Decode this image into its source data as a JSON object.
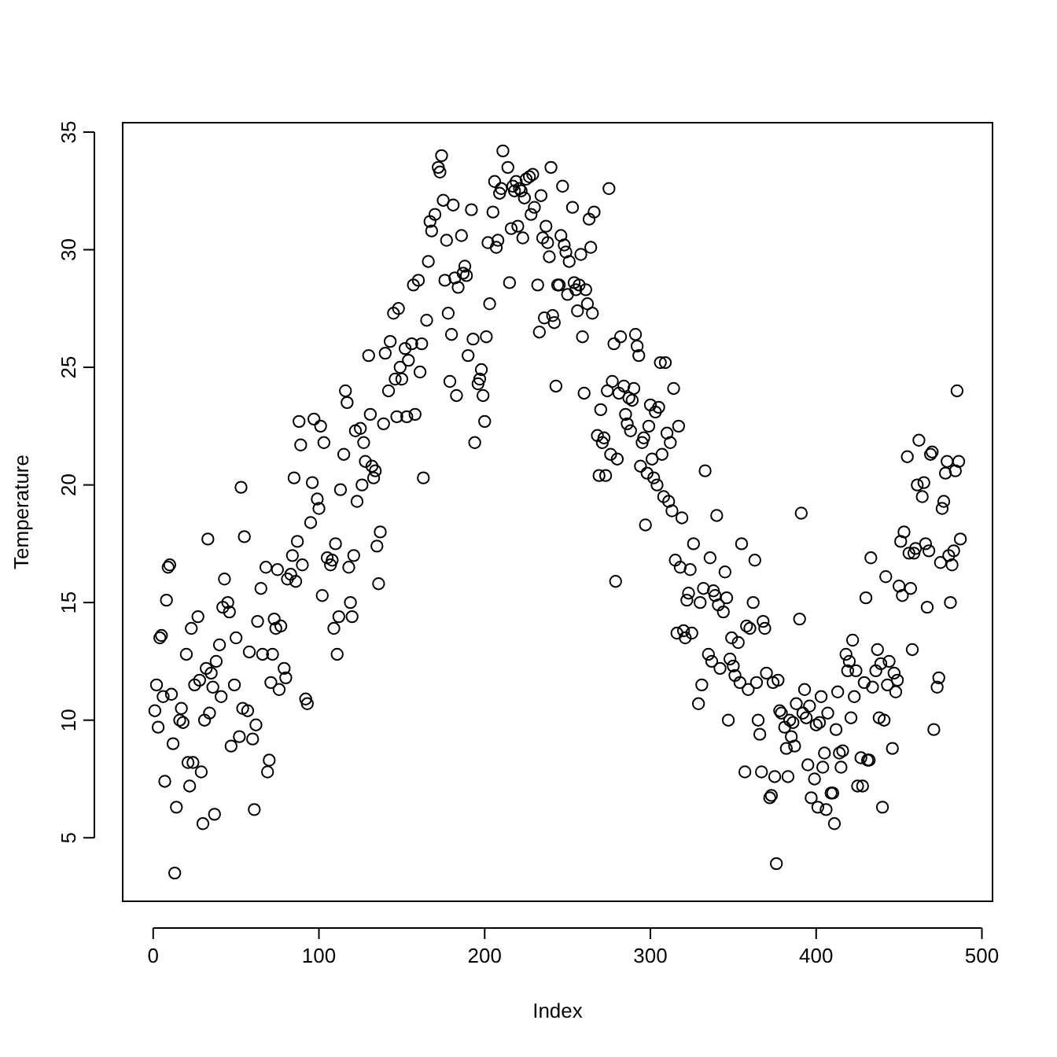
{
  "chart_data": {
    "type": "scatter",
    "xlabel": "Index",
    "ylabel": "Temperature",
    "color": "#000000",
    "marker": "circle",
    "xlim": [
      -18.4,
      506.4
    ],
    "ylim": [
      2.3,
      35.4
    ],
    "xticks": [
      0,
      100,
      200,
      300,
      400,
      500
    ],
    "yticks": [
      5,
      10,
      15,
      20,
      25,
      30,
      35
    ],
    "x": [
      1,
      2,
      3,
      4,
      5,
      6,
      7,
      8,
      9,
      10,
      11,
      12,
      13,
      14,
      16,
      17,
      18,
      20,
      21,
      22,
      23,
      24,
      25,
      27,
      28,
      29,
      30,
      31,
      32,
      33,
      34,
      35,
      36,
      37,
      38,
      40,
      41,
      42,
      43,
      45,
      46,
      47,
      49,
      50,
      52,
      53,
      54,
      55,
      57,
      58,
      60,
      61,
      62,
      63,
      65,
      66,
      68,
      69,
      70,
      71,
      72,
      73,
      74,
      75,
      76,
      77,
      79,
      80,
      81,
      83,
      84,
      85,
      86,
      87,
      88,
      89,
      90,
      92,
      93,
      95,
      96,
      97,
      99,
      100,
      101,
      102,
      103,
      105,
      107,
      108,
      109,
      110,
      111,
      112,
      113,
      115,
      116,
      117,
      118,
      119,
      120,
      121,
      122,
      123,
      125,
      126,
      127,
      128,
      130,
      131,
      132,
      133,
      134,
      135,
      136,
      137,
      139,
      140,
      142,
      143,
      145,
      146,
      147,
      148,
      149,
      150,
      152,
      153,
      154,
      156,
      157,
      158,
      160,
      161,
      162,
      163,
      165,
      166,
      167,
      168,
      170,
      172,
      173,
      174,
      175,
      176,
      177,
      178,
      179,
      180,
      181,
      182,
      183,
      184,
      186,
      187,
      188,
      189,
      190,
      192,
      193,
      194,
      196,
      197,
      198,
      199,
      200,
      201,
      202,
      203,
      205,
      206,
      207,
      208,
      209,
      210,
      211,
      214,
      215,
      216,
      217,
      218,
      219,
      220,
      221,
      222,
      223,
      224,
      225,
      227,
      228,
      229,
      230,
      232,
      233,
      234,
      235,
      236,
      237,
      238,
      239,
      240,
      241,
      242,
      243,
      244,
      245,
      246,
      247,
      248,
      249,
      250,
      251,
      253,
      254,
      255,
      256,
      257,
      258,
      259,
      260,
      261,
      262,
      263,
      264,
      265,
      266,
      268,
      269,
      270,
      271,
      272,
      273,
      274,
      275,
      276,
      277,
      278,
      279,
      280,
      281,
      282,
      284,
      285,
      286,
      287,
      288,
      289,
      290,
      291,
      292,
      293,
      294,
      295,
      296,
      297,
      298,
      299,
      300,
      301,
      302,
      303,
      304,
      305,
      306,
      307,
      308,
      309,
      310,
      311,
      312,
      313,
      314,
      315,
      316,
      317,
      318,
      319,
      320,
      321,
      322,
      323,
      324,
      325,
      326,
      329,
      330,
      331,
      332,
      333,
      335,
      336,
      337,
      338,
      339,
      340,
      341,
      342,
      344,
      345,
      346,
      347,
      348,
      349,
      350,
      351,
      353,
      354,
      355,
      357,
      358,
      359,
      360,
      362,
      363,
      364,
      365,
      366,
      367,
      368,
      369,
      370,
      372,
      373,
      374,
      375,
      376,
      377,
      378,
      379,
      381,
      382,
      383,
      384,
      385,
      386,
      387,
      388,
      390,
      391,
      392,
      393,
      394,
      395,
      396,
      397,
      399,
      400,
      401,
      402,
      403,
      404,
      405,
      406,
      407,
      409,
      410,
      411,
      412,
      413,
      414,
      415,
      416,
      418,
      419,
      420,
      421,
      422,
      423,
      424,
      425,
      427,
      428,
      429,
      430,
      431,
      432,
      433,
      434,
      436,
      437,
      438,
      439,
      440,
      441,
      442,
      443,
      444,
      446,
      447,
      448,
      449,
      450,
      451,
      452,
      453,
      455,
      456,
      457,
      458,
      459,
      460,
      461,
      462,
      464,
      465,
      466,
      467,
      468,
      469,
      470,
      471,
      473,
      474,
      475,
      476,
      477,
      478,
      479,
      480,
      481,
      482,
      483,
      484,
      485,
      486,
      487
    ],
    "values": [
      10.4,
      11.5,
      9.7,
      13.5,
      13.6,
      11.0,
      7.4,
      15.1,
      16.5,
      16.6,
      11.1,
      9.0,
      3.5,
      6.3,
      10.0,
      10.5,
      9.9,
      12.8,
      8.2,
      7.2,
      13.9,
      8.2,
      11.5,
      14.4,
      11.7,
      7.8,
      5.6,
      10.0,
      12.2,
      17.7,
      10.3,
      12.0,
      11.4,
      6.0,
      12.5,
      13.2,
      11.0,
      14.8,
      16.0,
      15.0,
      14.6,
      8.9,
      11.5,
      13.5,
      9.3,
      19.9,
      10.5,
      17.8,
      10.4,
      12.9,
      9.2,
      6.2,
      9.8,
      14.2,
      15.6,
      12.8,
      16.5,
      7.8,
      8.3,
      11.6,
      12.8,
      14.3,
      13.9,
      16.4,
      11.3,
      14.0,
      12.2,
      11.8,
      16.0,
      16.2,
      17.0,
      20.3,
      15.9,
      17.6,
      22.7,
      21.7,
      16.6,
      10.9,
      10.7,
      18.4,
      20.1,
      22.8,
      19.4,
      19.0,
      22.5,
      15.3,
      21.8,
      16.9,
      16.6,
      16.8,
      13.9,
      17.5,
      12.8,
      14.4,
      19.8,
      21.3,
      24.0,
      23.5,
      16.5,
      15.0,
      14.4,
      17.0,
      22.3,
      19.3,
      22.4,
      20.0,
      21.8,
      21.0,
      25.5,
      23.0,
      20.8,
      20.3,
      20.6,
      17.4,
      15.8,
      18.0,
      22.6,
      25.6,
      24.0,
      26.1,
      27.3,
      24.5,
      22.9,
      27.5,
      25.0,
      24.5,
      25.8,
      22.9,
      25.3,
      26.0,
      28.5,
      23.0,
      28.7,
      24.8,
      26.0,
      20.3,
      27.0,
      29.5,
      31.2,
      30.8,
      31.5,
      33.5,
      33.3,
      34.0,
      32.1,
      28.7,
      30.4,
      27.3,
      24.4,
      26.4,
      31.9,
      28.8,
      23.8,
      28.4,
      30.6,
      29.0,
      29.3,
      28.9,
      25.5,
      31.7,
      26.2,
      21.8,
      24.3,
      24.5,
      24.9,
      23.8,
      22.7,
      26.3,
      30.3,
      27.7,
      31.6,
      32.9,
      30.1,
      30.4,
      32.4,
      32.6,
      34.2,
      33.5,
      28.6,
      30.9,
      32.7,
      32.5,
      32.9,
      31.0,
      32.6,
      32.5,
      30.5,
      32.2,
      33.0,
      33.1,
      31.5,
      33.2,
      31.8,
      28.5,
      26.5,
      32.3,
      30.5,
      27.1,
      31.0,
      30.3,
      29.7,
      33.5,
      27.2,
      26.9,
      24.2,
      28.5,
      28.5,
      30.6,
      32.7,
      30.2,
      29.9,
      28.1,
      29.5,
      31.8,
      28.6,
      28.3,
      27.4,
      28.5,
      29.8,
      26.3,
      23.9,
      28.3,
      27.7,
      31.3,
      30.1,
      27.3,
      31.6,
      22.1,
      20.4,
      23.2,
      21.8,
      22.0,
      20.4,
      24.0,
      32.6,
      21.3,
      24.4,
      26.0,
      15.9,
      21.1,
      23.9,
      26.3,
      24.2,
      23.0,
      22.6,
      23.7,
      22.3,
      23.6,
      24.1,
      26.4,
      25.9,
      25.5,
      20.8,
      21.8,
      22.0,
      18.3,
      20.5,
      22.5,
      23.4,
      21.1,
      20.3,
      23.1,
      20.0,
      23.3,
      25.2,
      21.3,
      19.5,
      25.2,
      22.2,
      19.3,
      21.8,
      18.9,
      24.1,
      16.8,
      13.7,
      22.5,
      16.5,
      18.6,
      13.8,
      13.5,
      15.1,
      15.4,
      16.4,
      13.7,
      17.5,
      10.7,
      15.0,
      11.5,
      15.6,
      20.6,
      12.8,
      16.9,
      12.5,
      15.5,
      15.3,
      18.7,
      14.9,
      12.2,
      14.6,
      16.3,
      15.2,
      10.0,
      12.6,
      13.5,
      12.3,
      11.9,
      13.3,
      11.6,
      17.5,
      7.8,
      14.0,
      11.3,
      13.9,
      15.0,
      16.8,
      11.6,
      10.0,
      9.4,
      7.8,
      14.2,
      13.9,
      12.0,
      6.7,
      6.8,
      11.6,
      7.6,
      3.9,
      11.7,
      10.4,
      10.3,
      9.7,
      8.8,
      7.6,
      10.0,
      9.3,
      9.9,
      8.9,
      10.7,
      14.3,
      18.8,
      10.3,
      11.3,
      10.1,
      8.1,
      10.6,
      6.7,
      7.5,
      9.8,
      6.3,
      9.9,
      11.0,
      8.0,
      8.6,
      6.2,
      10.3,
      6.9,
      6.9,
      5.6,
      9.6,
      11.2,
      8.6,
      8.0,
      8.7,
      12.8,
      12.1,
      12.5,
      10.1,
      13.4,
      11.0,
      12.1,
      7.2,
      8.4,
      7.2,
      11.6,
      15.2,
      8.3,
      8.3,
      16.9,
      11.4,
      12.1,
      13.0,
      10.1,
      12.4,
      6.3,
      10.0,
      16.1,
      11.5,
      12.5,
      8.8,
      12.0,
      11.2,
      11.7,
      15.7,
      17.6,
      15.3,
      18.0,
      21.2,
      17.1,
      15.6,
      13.0,
      17.1,
      17.3,
      20.0,
      21.9,
      19.5,
      20.1,
      17.5,
      14.8,
      17.2,
      21.3,
      21.4,
      9.6,
      11.4,
      11.8,
      16.7,
      19.0,
      19.3,
      20.5,
      21.0,
      17.0,
      15.0,
      16.6,
      17.2,
      20.6,
      24.0,
      21.0,
      17.7
    ]
  }
}
